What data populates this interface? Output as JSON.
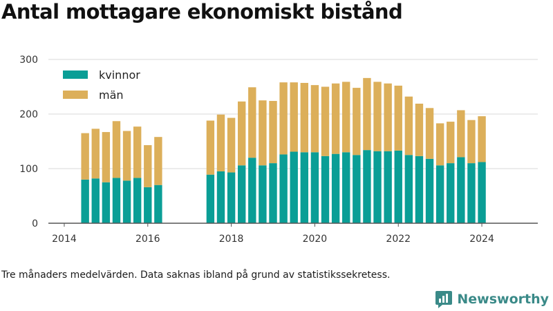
{
  "title": "Antal mottagare ekonomiskt bistånd",
  "footnote": "Tre månaders medelvärden. Data saknas ibland på grund av statistikssekretess.",
  "brand": {
    "name": "Newsworthy",
    "icon": "newsworthy-logo-icon"
  },
  "colors": {
    "kvinnor": "#0a9e96",
    "man": "#dcaf5a",
    "grid": "#d9d9d9",
    "axis": "#555555"
  },
  "chart_data": {
    "type": "bar",
    "stacked": true,
    "title": "Antal mottagare ekonomiskt bistånd",
    "xlabel": "",
    "ylabel": "",
    "xlim": [
      2013.62,
      2025.34
    ],
    "ylim": [
      0,
      300
    ],
    "yticks": [
      0,
      100,
      200,
      300
    ],
    "xticks": [
      2014,
      2016,
      2018,
      2020,
      2022,
      2024
    ],
    "grid": true,
    "legend": "top-left",
    "x": [
      2014.5,
      2014.75,
      2015.0,
      2015.25,
      2015.5,
      2015.75,
      2016.0,
      2016.25,
      2017.5,
      2017.75,
      2018.0,
      2018.25,
      2018.5,
      2018.75,
      2019.0,
      2019.25,
      2019.5,
      2019.75,
      2020.0,
      2020.25,
      2020.5,
      2020.75,
      2021.0,
      2021.25,
      2021.5,
      2021.75,
      2022.0,
      2022.25,
      2022.5,
      2022.75,
      2023.0,
      2023.25,
      2023.5,
      2023.75,
      2024.0,
      2024.25
    ],
    "series": [
      {
        "name": "kvinnor",
        "values": [
          80,
          82,
          75,
          83,
          78,
          83,
          66,
          70,
          89,
          95,
          93,
          106,
          120,
          106,
          110,
          126,
          131,
          130,
          130,
          123,
          127,
          130,
          125,
          134,
          132,
          132,
          133,
          125,
          123,
          118,
          106,
          110,
          121,
          110,
          112,
          0
        ]
      },
      {
        "name": "män",
        "values": [
          85,
          91,
          92,
          104,
          91,
          94,
          77,
          88,
          99,
          104,
          100,
          117,
          129,
          119,
          114,
          132,
          127,
          127,
          123,
          127,
          129,
          129,
          123,
          132,
          127,
          124,
          119,
          107,
          96,
          93,
          77,
          76,
          86,
          79,
          84,
          0
        ]
      }
    ],
    "legend_labels": [
      "kvinnor",
      "män"
    ]
  }
}
